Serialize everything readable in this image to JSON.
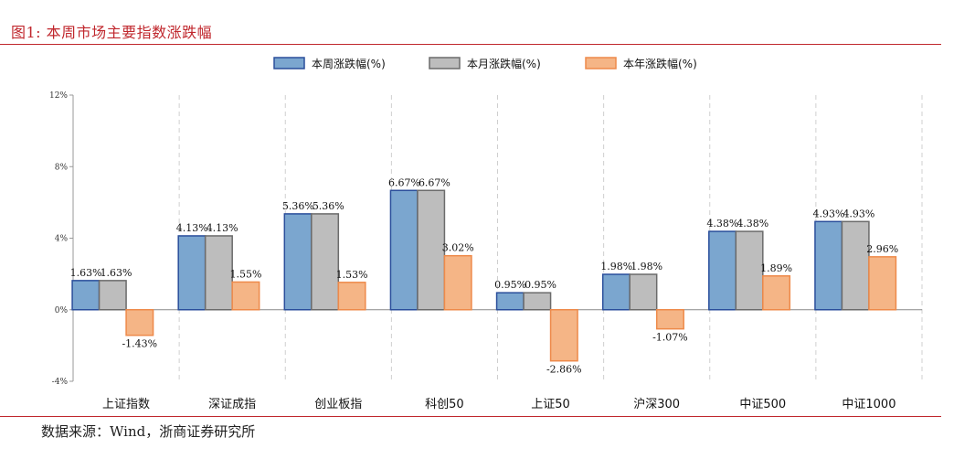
{
  "figure": {
    "title": "图1:  本周市场主要指数涨跌幅",
    "source": "数据来源：Wind，浙商证券研究所"
  },
  "colors": {
    "weekly_fill": "#7ba6cf",
    "weekly_stroke": "#2a4e9b",
    "monthly_fill": "#bdbdbd",
    "monthly_stroke": "#6b6b6b",
    "yearly_fill": "#f5b586",
    "yearly_stroke": "#ee8a4a",
    "accent_red": "#c0272d",
    "grid": "#cfcfcf"
  },
  "chart_data": {
    "type": "bar",
    "categories": [
      "上证指数",
      "深证成指",
      "创业板指",
      "科创50",
      "上证50",
      "沪深300",
      "中证500",
      "中证1000"
    ],
    "series": [
      {
        "name": "本周涨跌幅(%)",
        "values": [
          1.63,
          4.13,
          5.36,
          6.67,
          0.95,
          1.98,
          4.38,
          4.93
        ],
        "labels": [
          "1.63%",
          "4.13%",
          "5.36%",
          "6.67%",
          "0.95%",
          "1.98%",
          "4.38%",
          "4.93%"
        ]
      },
      {
        "name": "本月涨跌幅(%)",
        "values": [
          1.63,
          4.13,
          5.36,
          6.67,
          0.95,
          1.98,
          4.38,
          4.93
        ],
        "labels": [
          "1.63%",
          "4.13%",
          "5.36%",
          "6.67%",
          "0.95%",
          "1.98%",
          "4.38%",
          "4.93%"
        ]
      },
      {
        "name": "本年涨跌幅(%)",
        "values": [
          -1.43,
          1.55,
          1.53,
          3.02,
          -2.86,
          -1.07,
          1.89,
          2.96
        ],
        "labels": [
          "-1.43%",
          "1.55%",
          "1.53%",
          "3.02%",
          "-2.86%",
          "-1.07%",
          "1.89%",
          "2.96%"
        ]
      }
    ],
    "ylim": [
      -4,
      12
    ],
    "yticks": [
      -4,
      0,
      4,
      8,
      12
    ],
    "ytick_labels": [
      "-4%",
      "0%",
      "4%",
      "8%",
      "12%"
    ],
    "grid": "vertical dashed",
    "legend": "top-center"
  }
}
